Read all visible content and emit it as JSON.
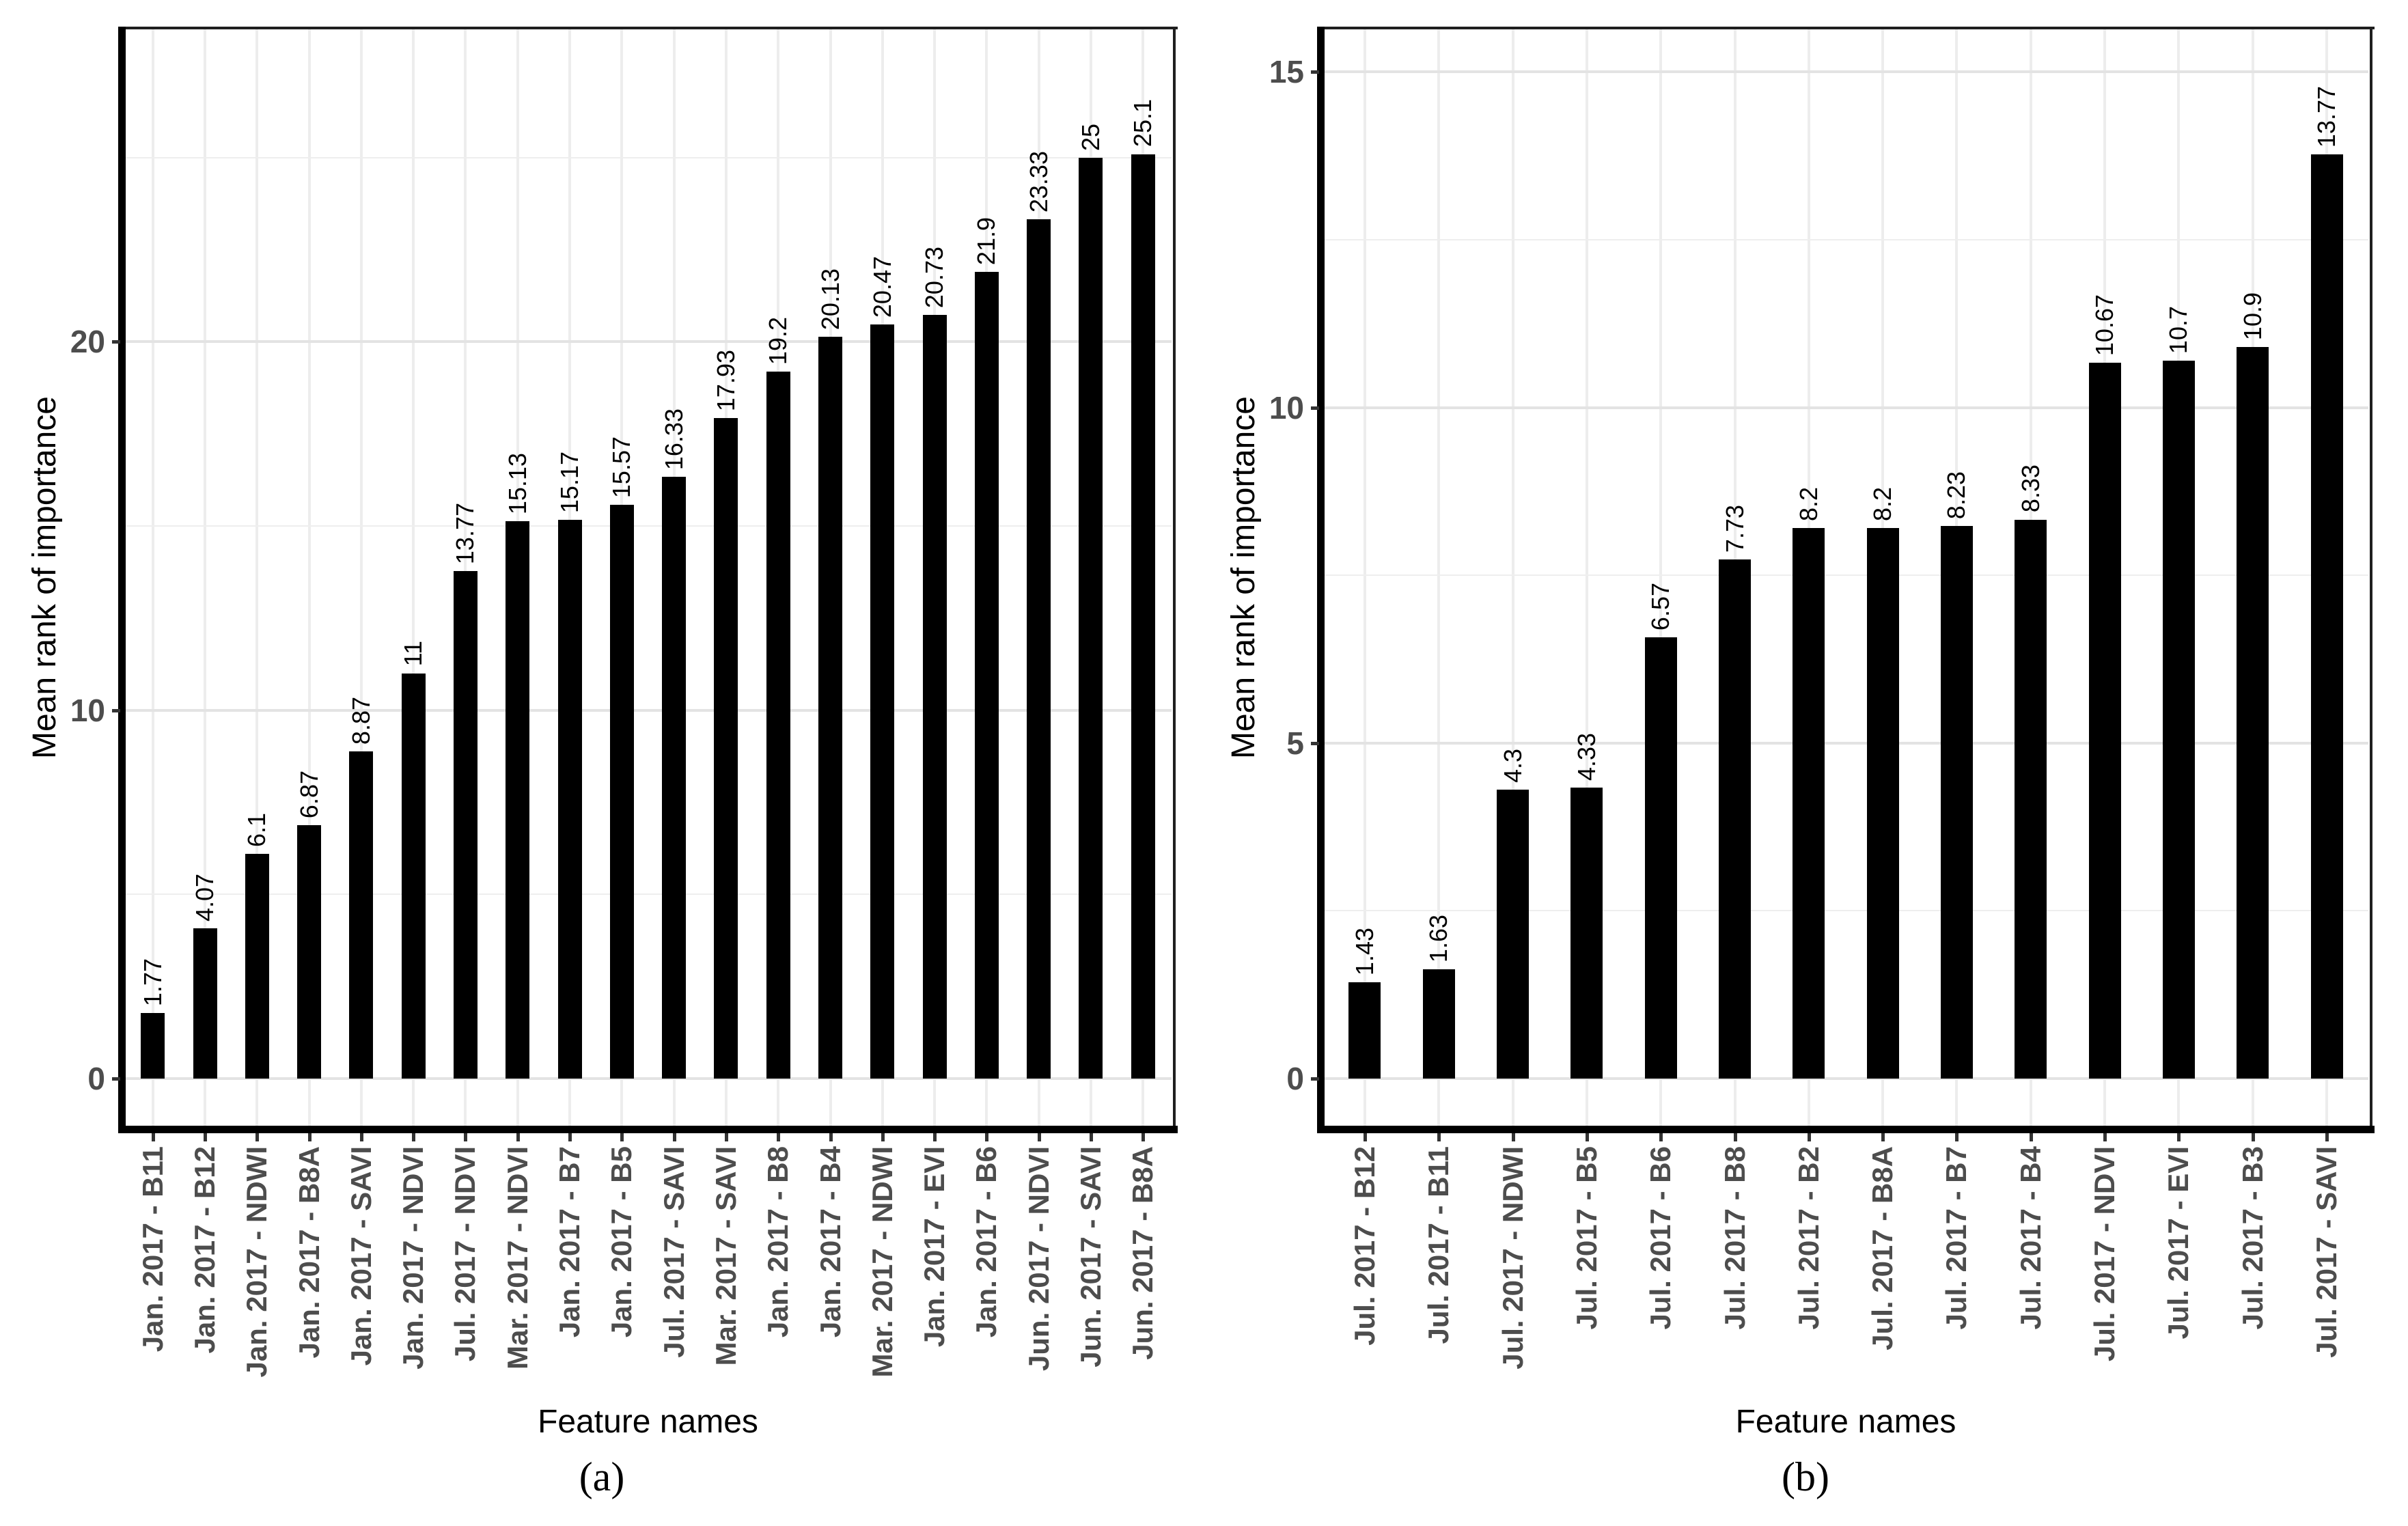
{
  "figure": {
    "background": "#ffffff",
    "bar_color": "#000000",
    "axis_text_color": "#4d4d4d",
    "grid_major_color": "#e3e3e3",
    "grid_minor_color": "#eeeeee",
    "captions": [
      "(a)",
      "(b)"
    ]
  },
  "chart_data": [
    {
      "type": "bar",
      "panel": "a",
      "title": "",
      "xlabel": "Feature names",
      "ylabel": "Mean rank of importance",
      "ylim": [
        0,
        27.2
      ],
      "yticks": [
        0,
        10,
        20
      ],
      "grid": true,
      "legend": false,
      "bar_color": "#000000",
      "categories": [
        "Jan. 2017 - B11",
        "Jan. 2017 - B12",
        "Jan. 2017 - NDWI",
        "Jan. 2017 - B8A",
        "Jan. 2017 - SAVI",
        "Jan. 2017 - NDVI",
        "Jul. 2017 - NDVI",
        "Mar. 2017 - NDVI",
        "Jan. 2017 - B7",
        "Jan. 2017 - B5",
        "Jul. 2017 - SAVI",
        "Mar. 2017 - SAVI",
        "Jan. 2017 - B8",
        "Jan. 2017 - B4",
        "Mar. 2017 - NDWI",
        "Jan. 2017 - EVI",
        "Jan. 2017 - B6",
        "Jun. 2017 - NDVI",
        "Jun. 2017 - SAVI",
        "Jun. 2017 - B8A"
      ],
      "values": [
        1.77,
        4.07,
        6.1,
        6.87,
        8.87,
        11,
        13.77,
        15.13,
        15.17,
        15.57,
        16.33,
        17.93,
        19.2,
        20.13,
        20.47,
        20.73,
        21.9,
        23.33,
        25,
        25.1
      ],
      "bar_labels": [
        "1.77",
        "4.07",
        "6.1",
        "6.87",
        "8.87",
        "11",
        "13.77",
        "15.13",
        "15.17",
        "15.57",
        "16.33",
        "17.93",
        "19.2",
        "20.13",
        "20.47",
        "20.73",
        "21.9",
        "23.33",
        "25",
        "25.1"
      ]
    },
    {
      "type": "bar",
      "panel": "b",
      "title": "",
      "xlabel": "Feature names",
      "ylabel": "Mean rank of importance",
      "ylim": [
        0,
        14.93
      ],
      "yticks": [
        0,
        5,
        10,
        15
      ],
      "grid": true,
      "legend": false,
      "bar_color": "#000000",
      "categories": [
        "Jul. 2017 - B12",
        "Jul. 2017 - B11",
        "Jul. 2017 - NDWI",
        "Jul. 2017 - B5",
        "Jul. 2017 - B6",
        "Jul. 2017 - B8",
        "Jul. 2017 - B2",
        "Jul. 2017 - B8A",
        "Jul. 2017 - B7",
        "Jul. 2017 - B4",
        "Jul. 2017 - NDVI",
        "Jul. 2017 - EVI",
        "Jul. 2017 - B3",
        "Jul. 2017 - SAVI"
      ],
      "values": [
        1.43,
        1.63,
        4.3,
        4.33,
        6.57,
        7.73,
        8.2,
        8.2,
        8.23,
        8.33,
        10.67,
        10.7,
        10.9,
        13.77
      ],
      "bar_labels": [
        "1.43",
        "1.63",
        "4.3",
        "4.33",
        "6.57",
        "7.73",
        "8.2",
        "8.2",
        "8.23",
        "8.33",
        "10.67",
        "10.7",
        "10.9",
        "13.77"
      ]
    }
  ]
}
